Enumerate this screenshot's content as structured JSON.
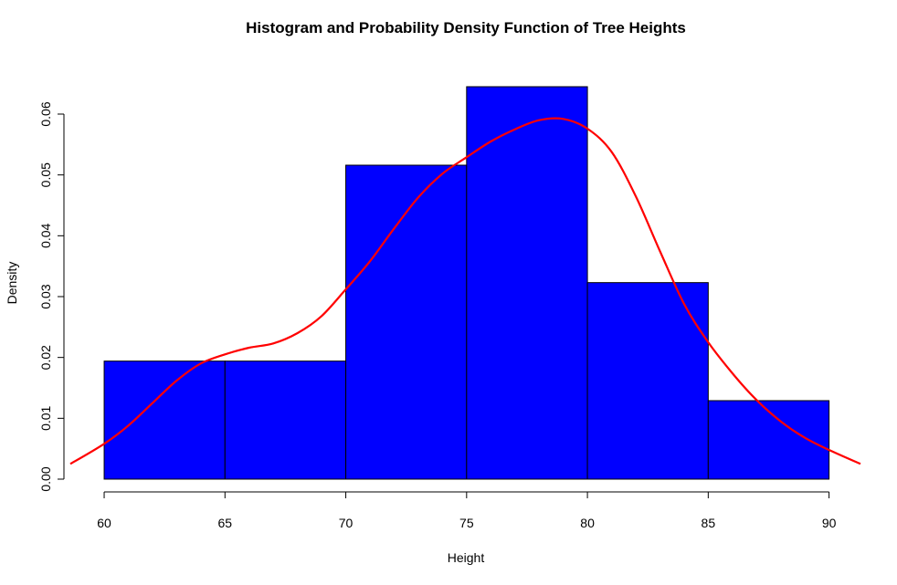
{
  "chart_data": {
    "type": "bar",
    "title": "Histogram and Probability Density Function of Tree Heights",
    "xlabel": "Height",
    "ylabel": "Density",
    "bins": [
      {
        "from": 60,
        "to": 65,
        "density": 0.0194
      },
      {
        "from": 65,
        "to": 70,
        "density": 0.0194
      },
      {
        "from": 70,
        "to": 75,
        "density": 0.0516
      },
      {
        "from": 75,
        "to": 80,
        "density": 0.0645
      },
      {
        "from": 80,
        "to": 85,
        "density": 0.0323
      },
      {
        "from": 85,
        "to": 90,
        "density": 0.0129
      }
    ],
    "x_ticks": [
      "60",
      "65",
      "70",
      "75",
      "80",
      "85",
      "90"
    ],
    "x_tick_values": [
      60,
      65,
      70,
      75,
      80,
      85,
      90
    ],
    "y_ticks": [
      "0.00",
      "0.01",
      "0.02",
      "0.03",
      "0.04",
      "0.05",
      "0.06"
    ],
    "y_tick_values": [
      0,
      0.01,
      0.02,
      0.03,
      0.04,
      0.05,
      0.06
    ],
    "xlim": [
      58.6,
      91.3
    ],
    "ylim": [
      0,
      0.0645
    ],
    "density_curve": {
      "x": [
        58.6,
        60,
        61,
        62,
        63,
        64,
        65,
        66,
        67,
        68,
        69,
        70,
        71,
        72,
        73,
        74,
        75,
        76,
        77,
        78,
        79,
        80,
        81,
        82,
        83,
        84,
        85,
        86,
        87,
        88,
        89,
        90,
        91.3
      ],
      "y": [
        0.0025,
        0.0058,
        0.0088,
        0.0125,
        0.0162,
        0.019,
        0.0205,
        0.0216,
        0.0223,
        0.024,
        0.0268,
        0.0312,
        0.0358,
        0.0412,
        0.0463,
        0.0502,
        0.0529,
        0.0555,
        0.0575,
        0.059,
        0.0592,
        0.0576,
        0.0538,
        0.0465,
        0.0375,
        0.0288,
        0.0225,
        0.0174,
        0.013,
        0.0095,
        0.0068,
        0.0048,
        0.0025
      ]
    },
    "grid": false,
    "legend": "none",
    "colors": {
      "bar_fill": "#0000ff",
      "bar_stroke": "#000000",
      "curve": "#ff0000",
      "axis": "#000000"
    }
  }
}
